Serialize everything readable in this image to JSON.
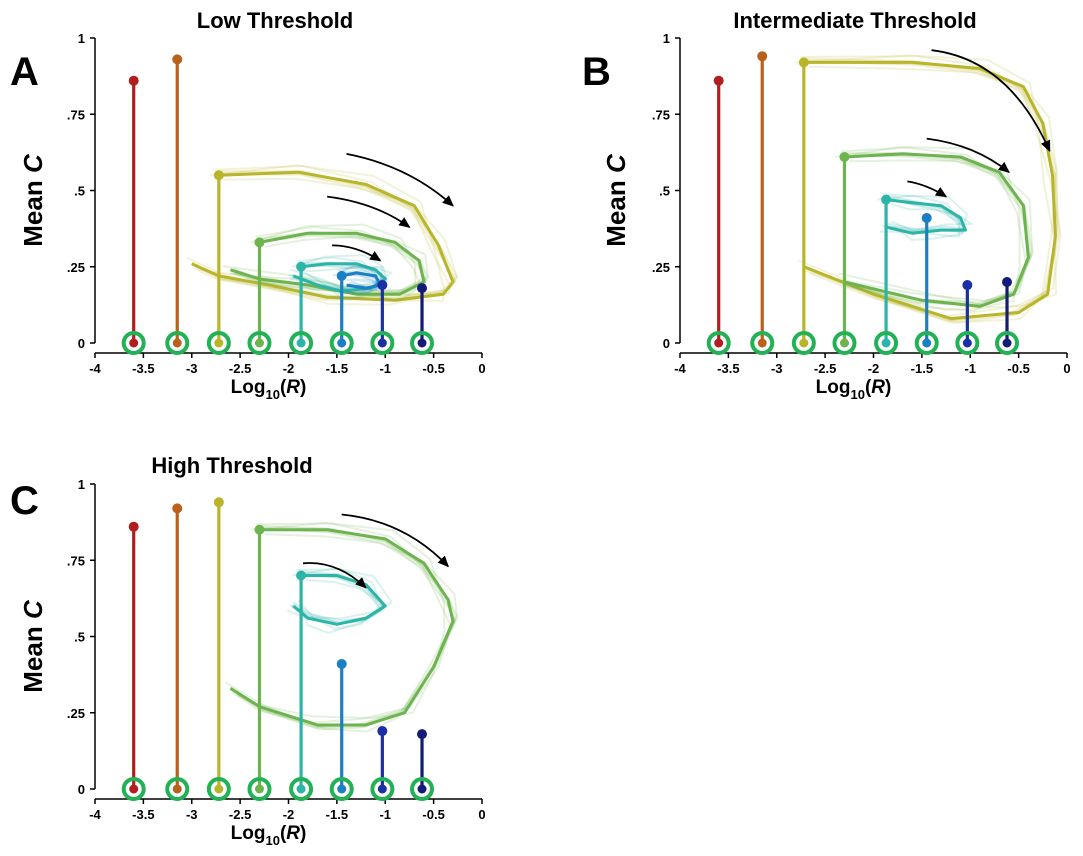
{
  "chart_data": [
    {
      "type": "line",
      "panel_label": "A",
      "title": "Low Threshold",
      "xlabel": "Log10(R)",
      "ylabel": "Mean C",
      "xlim": [
        -4,
        0
      ],
      "ylim": [
        0,
        1
      ],
      "xticks": [
        "-4",
        "-3.5",
        "-3",
        "-2.5",
        "-2",
        "-1.5",
        "-1",
        "-0.5",
        "0"
      ],
      "yticks": [
        "0",
        ".25",
        ".5",
        ".75",
        "1"
      ],
      "grid": false,
      "stems": [
        {
          "x": -3.6,
          "peak": 0.86,
          "color": "#b21e1e"
        },
        {
          "x": -3.15,
          "peak": 0.93,
          "color": "#b8601c"
        },
        {
          "x": -2.72,
          "peak": 0.55,
          "color": "#b9b52a"
        },
        {
          "x": -2.3,
          "peak": 0.33,
          "color": "#6db34e"
        },
        {
          "x": -1.87,
          "peak": 0.25,
          "color": "#2cb4a8"
        },
        {
          "x": -1.45,
          "peak": 0.22,
          "color": "#1a7fc4"
        },
        {
          "x": -1.03,
          "peak": 0.19,
          "color": "#1b2fa6"
        },
        {
          "x": -0.62,
          "peak": 0.18,
          "color": "#141a78"
        }
      ],
      "loops": [
        {
          "color": "#b9b52a",
          "points": [
            [
              -2.72,
              0.55
            ],
            [
              -1.9,
              0.56
            ],
            [
              -1.2,
              0.52
            ],
            [
              -0.7,
              0.45
            ],
            [
              -0.45,
              0.32
            ],
            [
              -0.3,
              0.2
            ],
            [
              -0.4,
              0.16
            ],
            [
              -0.9,
              0.14
            ],
            [
              -1.6,
              0.15
            ],
            [
              -2.2,
              0.19
            ],
            [
              -2.72,
              0.22
            ],
            [
              -3.0,
              0.26
            ]
          ]
        },
        {
          "color": "#6db34e",
          "points": [
            [
              -2.3,
              0.33
            ],
            [
              -1.8,
              0.36
            ],
            [
              -1.3,
              0.36
            ],
            [
              -0.9,
              0.33
            ],
            [
              -0.65,
              0.27
            ],
            [
              -0.6,
              0.2
            ],
            [
              -0.85,
              0.16
            ],
            [
              -1.3,
              0.16
            ],
            [
              -1.8,
              0.19
            ],
            [
              -2.3,
              0.21
            ],
            [
              -2.6,
              0.24
            ]
          ]
        },
        {
          "color": "#2cb4a8",
          "points": [
            [
              -1.87,
              0.25
            ],
            [
              -1.6,
              0.26
            ],
            [
              -1.3,
              0.26
            ],
            [
              -1.1,
              0.24
            ],
            [
              -1.0,
              0.21
            ],
            [
              -1.15,
              0.18
            ],
            [
              -1.45,
              0.17
            ],
            [
              -1.7,
              0.19
            ],
            [
              -1.95,
              0.22
            ]
          ]
        },
        {
          "color": "#1a7fc4",
          "points": [
            [
              -1.45,
              0.22
            ],
            [
              -1.3,
              0.23
            ],
            [
              -1.1,
              0.22
            ],
            [
              -1.05,
              0.19
            ],
            [
              -1.2,
              0.18
            ],
            [
              -1.4,
              0.19
            ]
          ]
        }
      ],
      "arrows": [
        {
          "points": [
            [
              -1.4,
              0.62
            ],
            [
              -0.75,
              0.58
            ],
            [
              -0.3,
              0.45
            ]
          ]
        },
        {
          "points": [
            [
              -1.6,
              0.48
            ],
            [
              -1.1,
              0.46
            ],
            [
              -0.75,
              0.38
            ]
          ]
        },
        {
          "points": [
            [
              -1.55,
              0.32
            ],
            [
              -1.3,
              0.32
            ],
            [
              -1.05,
              0.27
            ]
          ]
        }
      ]
    },
    {
      "type": "line",
      "panel_label": "B",
      "title": "Intermediate Threshold",
      "xlabel": "Log10(R)",
      "ylabel": "Mean C",
      "xlim": [
        -4,
        0
      ],
      "ylim": [
        0,
        1
      ],
      "xticks": [
        "-4",
        "-3.5",
        "-3",
        "-2.5",
        "-2",
        "-1.5",
        "-1",
        "-0.5",
        "0"
      ],
      "yticks": [
        "0",
        ".25",
        ".5",
        ".75",
        "1"
      ],
      "grid": false,
      "stems": [
        {
          "x": -3.6,
          "peak": 0.86,
          "color": "#b21e1e"
        },
        {
          "x": -3.15,
          "peak": 0.94,
          "color": "#b8601c"
        },
        {
          "x": -2.72,
          "peak": 0.92,
          "color": "#b9b52a"
        },
        {
          "x": -2.3,
          "peak": 0.61,
          "color": "#6db34e"
        },
        {
          "x": -1.87,
          "peak": 0.47,
          "color": "#2cb4a8"
        },
        {
          "x": -1.45,
          "peak": 0.41,
          "color": "#1a7fc4"
        },
        {
          "x": -1.03,
          "peak": 0.19,
          "color": "#1b2fa6"
        },
        {
          "x": -0.62,
          "peak": 0.2,
          "color": "#141a78"
        }
      ],
      "loops": [
        {
          "color": "#b9b52a",
          "points": [
            [
              -2.72,
              0.92
            ],
            [
              -1.6,
              0.92
            ],
            [
              -0.9,
              0.9
            ],
            [
              -0.45,
              0.84
            ],
            [
              -0.25,
              0.72
            ],
            [
              -0.15,
              0.55
            ],
            [
              -0.12,
              0.35
            ],
            [
              -0.2,
              0.16
            ],
            [
              -0.5,
              0.1
            ],
            [
              -1.2,
              0.08
            ],
            [
              -2.0,
              0.16
            ],
            [
              -2.72,
              0.25
            ]
          ]
        },
        {
          "color": "#6db34e",
          "points": [
            [
              -2.3,
              0.61
            ],
            [
              -1.7,
              0.62
            ],
            [
              -1.1,
              0.61
            ],
            [
              -0.7,
              0.56
            ],
            [
              -0.45,
              0.45
            ],
            [
              -0.4,
              0.28
            ],
            [
              -0.55,
              0.16
            ],
            [
              -0.9,
              0.12
            ],
            [
              -1.5,
              0.14
            ],
            [
              -2.3,
              0.2
            ]
          ]
        },
        {
          "color": "#2cb4a8",
          "points": [
            [
              -1.87,
              0.47
            ],
            [
              -1.6,
              0.46
            ],
            [
              -1.3,
              0.45
            ],
            [
              -1.1,
              0.41
            ],
            [
              -1.05,
              0.37
            ],
            [
              -1.3,
              0.37
            ],
            [
              -1.6,
              0.36
            ],
            [
              -1.87,
              0.38
            ]
          ]
        }
      ],
      "arrows": [
        {
          "points": [
            [
              -1.4,
              0.96
            ],
            [
              -0.6,
              0.93
            ],
            [
              -0.18,
              0.63
            ]
          ]
        },
        {
          "points": [
            [
              -1.45,
              0.67
            ],
            [
              -0.95,
              0.65
            ],
            [
              -0.6,
              0.56
            ]
          ]
        },
        {
          "points": [
            [
              -1.65,
              0.53
            ],
            [
              -1.45,
              0.52
            ],
            [
              -1.25,
              0.48
            ]
          ]
        }
      ]
    },
    {
      "type": "line",
      "panel_label": "C",
      "title": "High Threshold",
      "xlabel": "Log10(R)",
      "ylabel": "Mean C",
      "xlim": [
        -4,
        0
      ],
      "ylim": [
        0,
        1
      ],
      "xticks": [
        "-4",
        "-3.5",
        "-3",
        "-2.5",
        "-2",
        "-1.5",
        "-1",
        "-0.5",
        "0"
      ],
      "yticks": [
        "0",
        ".25",
        ".5",
        ".75",
        "1"
      ],
      "grid": false,
      "stems": [
        {
          "x": -3.6,
          "peak": 0.86,
          "color": "#b21e1e"
        },
        {
          "x": -3.15,
          "peak": 0.92,
          "color": "#b8601c"
        },
        {
          "x": -2.72,
          "peak": 0.94,
          "color": "#b9b52a"
        },
        {
          "x": -2.3,
          "peak": 0.85,
          "color": "#6db34e"
        },
        {
          "x": -1.87,
          "peak": 0.7,
          "color": "#2cb4a8"
        },
        {
          "x": -1.45,
          "peak": 0.41,
          "color": "#1a7fc4"
        },
        {
          "x": -1.03,
          "peak": 0.19,
          "color": "#1b2fa6"
        },
        {
          "x": -0.62,
          "peak": 0.18,
          "color": "#141a78"
        }
      ],
      "loops": [
        {
          "color": "#6db34e",
          "points": [
            [
              -2.3,
              0.85
            ],
            [
              -1.6,
              0.85
            ],
            [
              -1.0,
              0.82
            ],
            [
              -0.6,
              0.74
            ],
            [
              -0.35,
              0.62
            ],
            [
              -0.3,
              0.55
            ],
            [
              -0.5,
              0.4
            ],
            [
              -0.8,
              0.25
            ],
            [
              -1.2,
              0.21
            ],
            [
              -1.7,
              0.21
            ],
            [
              -2.3,
              0.27
            ],
            [
              -2.6,
              0.33
            ]
          ]
        },
        {
          "color": "#2cb4a8",
          "points": [
            [
              -1.87,
              0.7
            ],
            [
              -1.5,
              0.7
            ],
            [
              -1.2,
              0.67
            ],
            [
              -1.0,
              0.6
            ],
            [
              -1.2,
              0.56
            ],
            [
              -1.5,
              0.54
            ],
            [
              -1.8,
              0.56
            ],
            [
              -1.95,
              0.6
            ]
          ]
        }
      ],
      "arrows": [
        {
          "points": [
            [
              -1.45,
              0.9
            ],
            [
              -0.8,
              0.88
            ],
            [
              -0.35,
              0.73
            ]
          ]
        },
        {
          "points": [
            [
              -1.85,
              0.74
            ],
            [
              -1.5,
              0.75
            ],
            [
              -1.2,
              0.66
            ]
          ]
        }
      ]
    }
  ]
}
